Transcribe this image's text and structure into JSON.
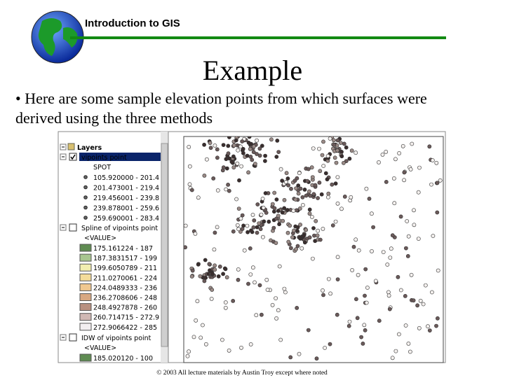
{
  "header": {
    "title": "Introduction to GIS"
  },
  "slide": {
    "title": "Example",
    "bullet": [
      "• Here are some sample elevation points from which surfaces were",
      "derived using the three methods"
    ]
  },
  "toc": {
    "root": "Layers",
    "layers": [
      {
        "name": "vipoints point",
        "field": "SPOT",
        "classes": [
          "105.920000 - 201.4",
          "201.473001 - 219.4",
          "219.456001 - 239.8",
          "239.878001 - 259.6",
          "259.690001 - 283.4"
        ]
      },
      {
        "name": "Spline of vipoints point",
        "field": "<VALUE>",
        "classes": [
          "175.161224 - 187",
          "187.3831517 - 199",
          "199.6050789 - 211",
          "211.0270061 - 224",
          "224.0489333 - 236",
          "236.2708606 - 248",
          "248.4927878 - 260",
          "260.714715 - 272.9",
          "272.9066422 - 285"
        ]
      },
      {
        "name": "IDW of vipoints point",
        "field": "<VALUE>",
        "classes": [
          "185.020120 - 100"
        ]
      }
    ]
  },
  "footer": "© 2003 All lecture materials by Austin Troy except where noted"
}
